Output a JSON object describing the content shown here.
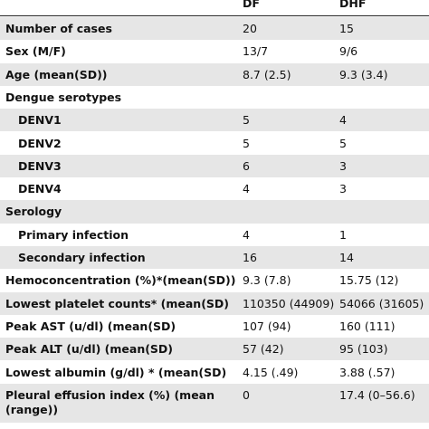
{
  "table": {
    "header": [
      "DF",
      "DHF"
    ],
    "rows": [
      [
        "Number of cases",
        "20",
        "15"
      ],
      [
        "Sex (M/F)",
        "13/7",
        "9/6"
      ],
      [
        "Age (mean(SD))",
        "8.7 (2.5)",
        "9.3 (3.4)"
      ],
      {
        "label": "Dengue serotypes",
        "rows": [
          [
            "DENV1",
            "5",
            "4"
          ],
          [
            "DENV2",
            "5",
            "5"
          ],
          [
            "DENV3",
            "6",
            "3"
          ],
          [
            "DENV4",
            "4",
            "3"
          ]
        ]
      },
      {
        "label": "Serology",
        "rows": [
          [
            "Primary infection",
            "4",
            "1"
          ],
          [
            "Secondary infection",
            "16",
            "14"
          ]
        ]
      },
      [
        "Hemoconcentration (%)*(mean(SD))",
        "9.3 (7.8)",
        "15.75 (12)"
      ],
      [
        "Lowest platelet counts* (mean(SD)",
        "110350 (44909)",
        "54066 (31605)"
      ],
      [
        "Peak AST (u/dl) (mean(SD)",
        "107 (94)",
        "160 (111)"
      ],
      [
        "Peak ALT (u/dl) (mean(SD)",
        "57 (42)",
        "95 (103)"
      ],
      [
        "Lowest albumin (g/dl) * (mean(SD)",
        "4.15 (.49)",
        "3.88 (.57)"
      ],
      [
        "Pleural effusion index (%) (mean (range))",
        "0",
        "17.4 (0–56.6)"
      ]
    ]
  }
}
